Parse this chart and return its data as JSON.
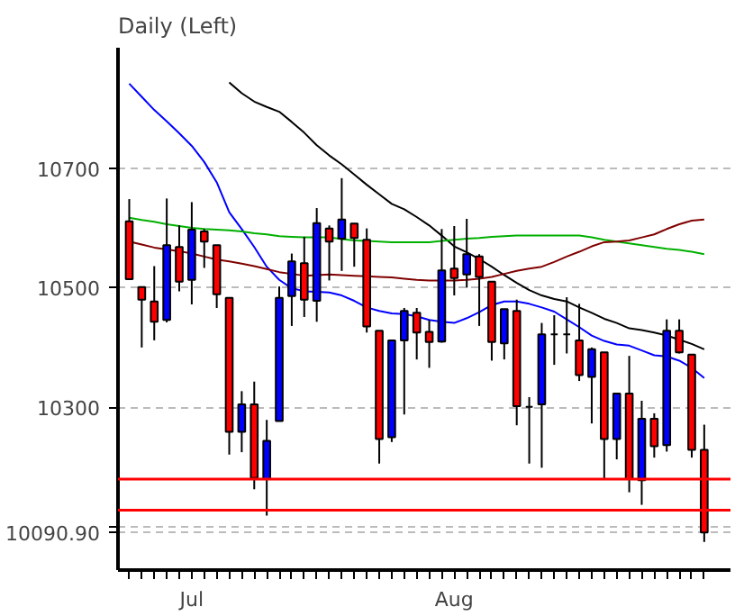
{
  "chart_data": {
    "type": "candlestick",
    "title": "Daily     (Left)",
    "categories": [
      null,
      null,
      null,
      null,
      null,
      "Jul",
      null,
      null,
      null,
      null,
      null,
      null,
      null,
      null,
      null,
      null,
      null,
      null,
      null,
      null,
      null,
      null,
      null,
      null,
      null,
      null,
      "Aug",
      null,
      null,
      null,
      null,
      null,
      null,
      null,
      null,
      null,
      null,
      null,
      null,
      null,
      null,
      null,
      null,
      null,
      null,
      null,
      null
    ],
    "ohlc": [
      [
        10611,
        10648,
        10514,
        10514
      ],
      [
        10501,
        10501,
        10400,
        10480
      ],
      [
        10477,
        10536,
        10412,
        10443
      ],
      [
        10446,
        10649,
        10442,
        10571
      ],
      [
        10568,
        10604,
        10494,
        10510
      ],
      [
        10513,
        10643,
        10472,
        10597
      ],
      [
        10594,
        10598,
        10533,
        10577
      ],
      [
        10571,
        10571,
        10466,
        10489
      ],
      [
        10483,
        10483,
        10221,
        10259
      ],
      [
        10259,
        10327,
        10225,
        10305
      ],
      [
        10305,
        10343,
        10163,
        10182
      ],
      [
        10180,
        10279,
        10119,
        10244
      ],
      [
        10277,
        10502,
        10277,
        10483
      ],
      [
        10486,
        10557,
        10436,
        10544
      ],
      [
        10541,
        10585,
        10451,
        10480
      ],
      [
        10478,
        10633,
        10443,
        10608
      ],
      [
        10599,
        10604,
        10512,
        10577
      ],
      [
        10582,
        10683,
        10528,
        10614
      ],
      [
        10607,
        10607,
        10535,
        10583
      ],
      [
        10580,
        10599,
        10425,
        10435
      ],
      [
        10428,
        10428,
        10206,
        10247
      ],
      [
        10250,
        10412,
        10242,
        10412
      ],
      [
        10412,
        10466,
        10288,
        10461
      ],
      [
        10458,
        10466,
        10380,
        10425
      ],
      [
        10426,
        10446,
        10366,
        10409
      ],
      [
        10410,
        10598,
        10408,
        10529
      ],
      [
        10532,
        10603,
        10487,
        10516
      ],
      [
        10522,
        10615,
        10500,
        10556
      ],
      [
        10552,
        10556,
        10436,
        10518
      ],
      [
        10510,
        10510,
        10378,
        10409
      ],
      [
        10407,
        10464,
        10380,
        10464
      ],
      [
        10461,
        10480,
        10270,
        10302
      ],
      [
        10301,
        10317,
        10206,
        10301
      ],
      [
        10305,
        10441,
        10199,
        10422
      ],
      [
        10422,
        10454,
        10371,
        10422
      ],
      [
        10422,
        10484,
        10390,
        10422
      ],
      [
        10412,
        10473,
        10344,
        10354
      ],
      [
        10351,
        10400,
        10273,
        10397
      ],
      [
        10392,
        10392,
        10181,
        10247
      ],
      [
        10247,
        10323,
        10213,
        10323
      ],
      [
        10323,
        10386,
        10158,
        10180
      ],
      [
        10178,
        10311,
        10137,
        10281
      ],
      [
        10281,
        10290,
        10216,
        10235
      ],
      [
        10237,
        10447,
        10226,
        10428
      ],
      [
        10428,
        10447,
        10390,
        10392
      ],
      [
        10388,
        10388,
        10216,
        10229
      ],
      [
        10229,
        10271,
        10075,
        10090.9
      ]
    ],
    "colors": [
      "#ff0000",
      "#ff0000",
      "#ff0000",
      "#0000ff",
      "#ff0000",
      "#0000ff",
      "#ff0000",
      "#ff0000",
      "#ff0000",
      "#0000ff",
      "#ff0000",
      "#0000ff",
      "#0000ff",
      "#0000ff",
      "#ff0000",
      "#0000ff",
      "#ff0000",
      "#0000ff",
      "#ff0000",
      "#ff0000",
      "#ff0000",
      "#0000ff",
      "#0000ff",
      "#ff0000",
      "#ff0000",
      "#0000ff",
      "#ff0000",
      "#0000ff",
      "#ff0000",
      "#ff0000",
      "#0000ff",
      "#ff0000",
      "#000000",
      "#0000ff",
      "#000000",
      "#000000",
      "#ff0000",
      "#0000ff",
      "#ff0000",
      "#0000ff",
      "#ff0000",
      "#0000ff",
      "#ff0000",
      "#0000ff",
      "#ff0000",
      "#ff0000",
      "#ff0000"
    ],
    "series": [
      {
        "type": "line",
        "color": "#0000ff",
        "values": [
          10841,
          10819,
          10797,
          10778,
          10758,
          10737,
          10710,
          10676,
          10626,
          10598,
          10568,
          10535,
          10513,
          10499,
          10494,
          10493,
          10492,
          10487,
          10478,
          10467,
          10461,
          10457,
          10456,
          10452,
          10446,
          10443,
          10441,
          10449,
          10459,
          10471,
          10477,
          10477,
          10473,
          10467,
          10460,
          10447,
          10434,
          10420,
          10411,
          10405,
          10403,
          10395,
          10387,
          10385,
          10378,
          10366,
          10349
        ]
      },
      {
        "type": "line",
        "color": "#000000",
        "values": [
          null,
          null,
          null,
          null,
          null,
          null,
          null,
          null,
          10843,
          10825,
          10811,
          10802,
          10794,
          10777,
          10759,
          10738,
          10721,
          10706,
          10689,
          10672,
          10656,
          10640,
          10631,
          10618,
          10604,
          10587,
          10569,
          10559,
          10548,
          10535,
          10521,
          10508,
          10496,
          10487,
          10481,
          10477,
          10467,
          10458,
          10448,
          10441,
          10432,
          10429,
          10425,
          10420,
          10413,
          10406,
          10397
        ]
      },
      {
        "type": "line",
        "color": "#00b000",
        "values": [
          10617,
          10613,
          10610,
          10606,
          10603,
          10600,
          10598,
          10597,
          10596,
          10594,
          10591,
          10589,
          10586,
          10585,
          10584,
          10584,
          10584,
          10581,
          10579,
          10578,
          10577,
          10576,
          10576,
          10576,
          10576,
          10578,
          10580,
          10582,
          10583,
          10585,
          10586,
          10587,
          10587,
          10587,
          10587,
          10587,
          10587,
          10584,
          10580,
          10577,
          10574,
          10571,
          10568,
          10565,
          10563,
          10560,
          10556
        ]
      },
      {
        "type": "line",
        "color": "#800000",
        "values": [
          10577,
          10572,
          10567,
          10564,
          10561,
          10557,
          10552,
          10547,
          10544,
          10540,
          10536,
          10531,
          10526,
          10523,
          10520,
          10521,
          10522,
          10521,
          10520,
          10519,
          10518,
          10517,
          10515,
          10513,
          10512,
          10512,
          10512,
          10513,
          10515,
          10518,
          10523,
          10528,
          10532,
          10535,
          10543,
          10552,
          10560,
          10569,
          10576,
          10577,
          10579,
          10584,
          10589,
          10598,
          10606,
          10612,
          10614
        ]
      }
    ],
    "ylim": [
      10028,
      10901
    ],
    "yticks": [
      10700,
      10500,
      10300,
      {
        "value": 10100,
        "label": null
      },
      {
        "value": 10090.9,
        "label": "10090.90"
      }
    ],
    "grid": "y",
    "ref_lines": [
      {
        "axis": "y",
        "value": 10180,
        "color": "#ff0000"
      },
      {
        "axis": "y",
        "value": 10128,
        "color": "#ff0000"
      }
    ]
  }
}
